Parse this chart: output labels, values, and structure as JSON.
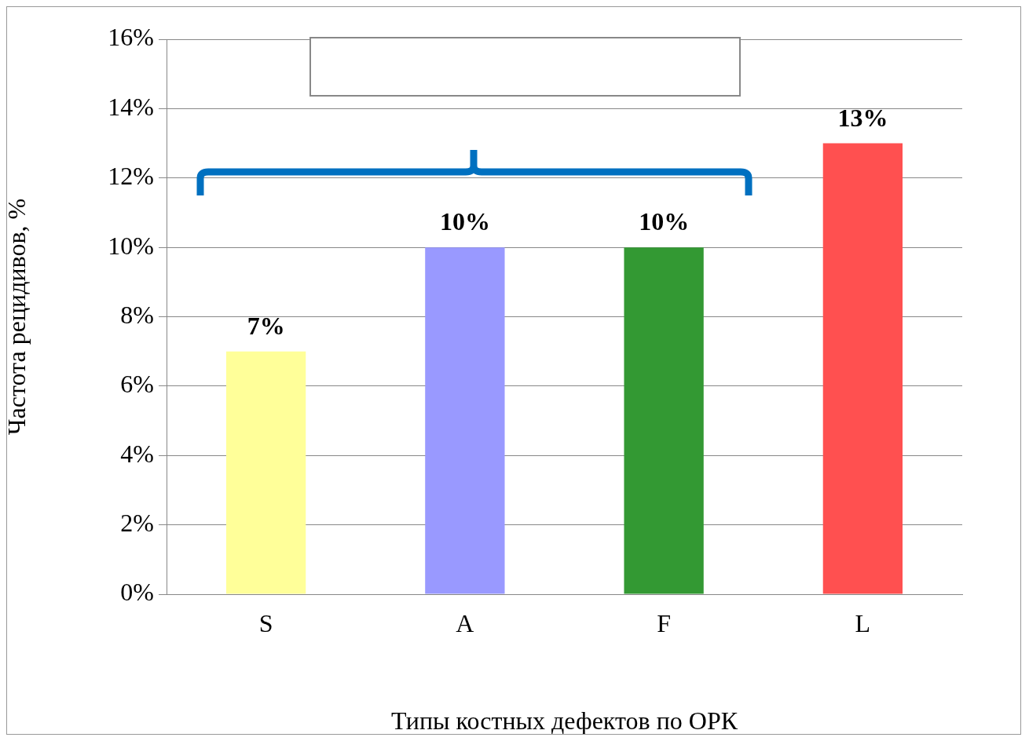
{
  "chart_data": {
    "type": "bar",
    "xlabel": "Типы костных дефектов по ОРК",
    "ylabel": "Частота рецидивов, %",
    "categories": [
      "S",
      "A",
      "F",
      "L"
    ],
    "values": [
      7,
      10,
      10,
      13
    ],
    "colors": [
      "#ffff99",
      "#9999ff",
      "#339933",
      "#ff5050"
    ],
    "value_labels": [
      "7%",
      "10%",
      "10%",
      "13%"
    ],
    "ylim": [
      0,
      16
    ],
    "yticks": [
      {
        "value": 0,
        "label": "0%"
      },
      {
        "value": 2,
        "label": "2%"
      },
      {
        "value": 4,
        "label": "4%"
      },
      {
        "value": 6,
        "label": "6%"
      },
      {
        "value": 8,
        "label": "8%"
      },
      {
        "value": 10,
        "label": "10%"
      },
      {
        "value": 12,
        "label": "12%"
      },
      {
        "value": 14,
        "label": "14%"
      },
      {
        "value": 16,
        "label": "16%"
      }
    ],
    "grid": "y",
    "legend": false
  }
}
